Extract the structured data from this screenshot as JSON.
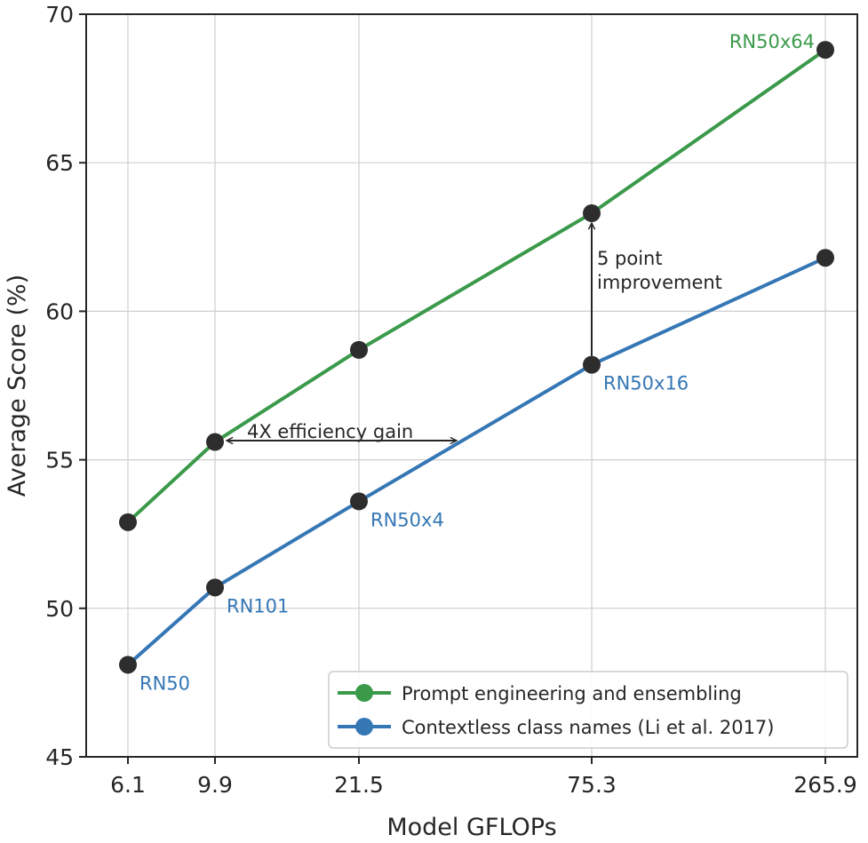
{
  "chart_data": {
    "type": "line",
    "x": [
      "6.1",
      "9.9",
      "21.5",
      "75.3",
      "265.9"
    ],
    "xlabel": "Model GFLOPs",
    "ylabel": "Average Score (%)",
    "ylim": [
      45,
      70
    ],
    "yticks": [
      45,
      50,
      55,
      60,
      65,
      70
    ],
    "grid": true,
    "series": [
      {
        "name": "Prompt engineering and ensembling",
        "color": "#3a9a4a",
        "values": [
          52.9,
          55.6,
          58.7,
          63.3,
          68.8
        ]
      },
      {
        "name": "Contextless class names (Li et al. 2017)",
        "color": "#3577b5",
        "values": [
          48.1,
          50.7,
          53.6,
          58.2,
          61.8
        ]
      }
    ],
    "point_labels": [
      {
        "text": "RN50",
        "series": 1,
        "index": 0,
        "color": "#3577b5"
      },
      {
        "text": "RN101",
        "series": 1,
        "index": 1,
        "color": "#3577b5"
      },
      {
        "text": "RN50x4",
        "series": 1,
        "index": 2,
        "color": "#3577b5"
      },
      {
        "text": "RN50x16",
        "series": 1,
        "index": 3,
        "color": "#3577b5"
      },
      {
        "text": "RN50x64",
        "series": 0,
        "index": 4,
        "color": "#3a9a4a"
      }
    ],
    "annotations": {
      "efficiency": "4X efficiency gain",
      "improvement_line1": "5 point",
      "improvement_line2": "improvement"
    },
    "marker_color": "#2d2d2d",
    "legend_position": "lower-right"
  }
}
